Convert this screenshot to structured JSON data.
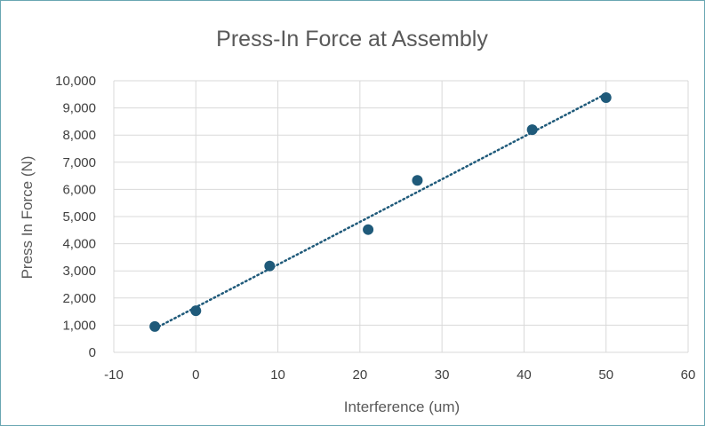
{
  "chart_data": {
    "type": "scatter",
    "title": "Press-In Force at Assembly",
    "xlabel": "Interference (um)",
    "ylabel": "Press In Force (N)",
    "xlim": [
      -10,
      60
    ],
    "ylim": [
      0,
      10000
    ],
    "x_ticks": [
      "-10",
      "0",
      "10",
      "20",
      "30",
      "40",
      "50",
      "60"
    ],
    "y_ticks": [
      "0",
      "1,000",
      "2,000",
      "3,000",
      "4,000",
      "5,000",
      "6,000",
      "7,000",
      "8,000",
      "9,000",
      "10,000"
    ],
    "grid": true,
    "legend": "none",
    "series": [
      {
        "points": [
          {
            "x": -5,
            "y": 950
          },
          {
            "x": 0,
            "y": 1530
          },
          {
            "x": 9,
            "y": 3180
          },
          {
            "x": 21,
            "y": 4520
          },
          {
            "x": 27,
            "y": 6330
          },
          {
            "x": 41,
            "y": 8200
          },
          {
            "x": 50,
            "y": 9380
          }
        ],
        "color": "#1f5a7a"
      }
    ],
    "trendline": {
      "type": "linear",
      "style": "dotted",
      "color": "#1f5a7a"
    }
  }
}
